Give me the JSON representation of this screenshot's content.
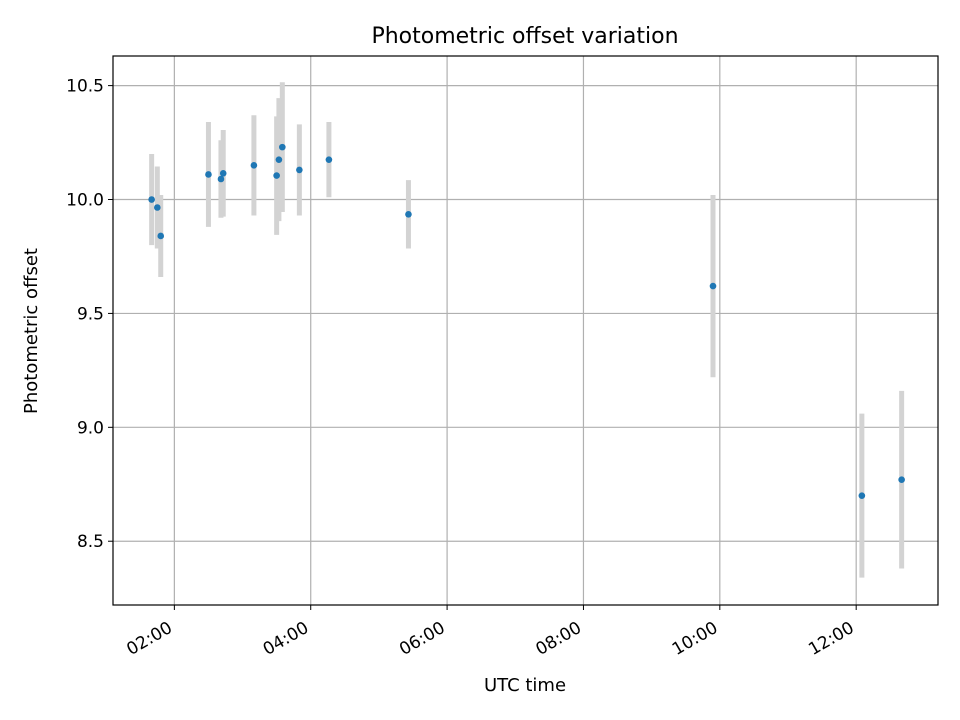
{
  "chart_data": {
    "type": "scatter",
    "title": "Photometric offset variation",
    "xlabel": "UTC time",
    "ylabel": "Photometric offset",
    "x_unit": "UTC time of day (HH:MM)",
    "grid": true,
    "legend": "none",
    "colors": {
      "point": "#1f77b4",
      "errorbar": "#d3d3d3"
    },
    "xlim": [
      "01:06",
      "13:12"
    ],
    "ylim": [
      8.22,
      10.63
    ],
    "x_ticks": [
      "02:00",
      "04:00",
      "06:00",
      "08:00",
      "10:00",
      "12:00"
    ],
    "y_ticks": [
      "8.5",
      "9.0",
      "9.5",
      "10.0",
      "10.5"
    ],
    "points": [
      {
        "x": "01:40",
        "y": 10.0,
        "err": 0.2
      },
      {
        "x": "01:45",
        "y": 9.965,
        "err": 0.18
      },
      {
        "x": "01:48",
        "y": 9.84,
        "err": 0.18
      },
      {
        "x": "02:30",
        "y": 10.11,
        "err": 0.23
      },
      {
        "x": "02:41",
        "y": 10.09,
        "err": 0.17
      },
      {
        "x": "02:43",
        "y": 10.115,
        "err": 0.19
      },
      {
        "x": "03:10",
        "y": 10.15,
        "err": 0.22
      },
      {
        "x": "03:30",
        "y": 10.105,
        "err": 0.26
      },
      {
        "x": "03:32",
        "y": 10.175,
        "err": 0.27
      },
      {
        "x": "03:35",
        "y": 10.23,
        "err": 0.285
      },
      {
        "x": "03:50",
        "y": 10.13,
        "err": 0.2
      },
      {
        "x": "04:16",
        "y": 10.175,
        "err": 0.165
      },
      {
        "x": "05:26",
        "y": 9.935,
        "err": 0.15
      },
      {
        "x": "09:54",
        "y": 9.62,
        "err": 0.4
      },
      {
        "x": "12:05",
        "y": 8.7,
        "err": 0.36
      },
      {
        "x": "12:40",
        "y": 8.77,
        "err": 0.39
      }
    ]
  }
}
